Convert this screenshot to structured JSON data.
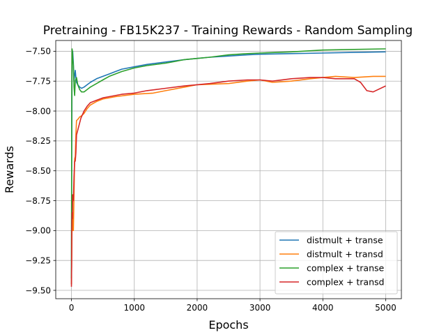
{
  "chart_data": {
    "type": "line",
    "title": "Pretraining - FB15K237 - Training Rewards - Random Sampling",
    "xlabel": "Epochs",
    "ylabel": "Rewards",
    "xlim": [
      -250,
      5250
    ],
    "ylim": [
      -9.57,
      -7.41
    ],
    "xticks": [
      0,
      1000,
      2000,
      3000,
      4000,
      5000
    ],
    "xtick_labels": [
      "0",
      "1000",
      "2000",
      "3000",
      "4000",
      "5000"
    ],
    "yticks": [
      -9.5,
      -9.25,
      -9.0,
      -8.75,
      -8.5,
      -8.25,
      -8.0,
      -7.75,
      -7.5
    ],
    "ytick_labels": [
      "−9.50",
      "−9.25",
      "−9.00",
      "−8.75",
      "−8.50",
      "−8.25",
      "−8.00",
      "−7.75",
      "−7.50"
    ],
    "grid": true,
    "legend_position": "lower-right",
    "series": [
      {
        "name": "distmult + transe",
        "color": "#1f77b4",
        "x": [
          0,
          5,
          10,
          20,
          30,
          40,
          50,
          60,
          70,
          80,
          100,
          130,
          160,
          200,
          250,
          300,
          400,
          500,
          600,
          700,
          800,
          1000,
          1200,
          1500,
          1800,
          2000,
          2200,
          2500,
          2800,
          3000,
          3500,
          4000,
          4500,
          5000
        ],
        "y": [
          -9.45,
          -8.2,
          -7.6,
          -7.5,
          -7.6,
          -7.75,
          -7.7,
          -7.66,
          -7.72,
          -7.76,
          -7.78,
          -7.8,
          -7.81,
          -7.8,
          -7.78,
          -7.76,
          -7.73,
          -7.71,
          -7.69,
          -7.67,
          -7.65,
          -7.63,
          -7.61,
          -7.59,
          -7.57,
          -7.56,
          -7.55,
          -7.54,
          -7.53,
          -7.525,
          -7.52,
          -7.515,
          -7.51,
          -7.505
        ]
      },
      {
        "name": "distmult + transd",
        "color": "#ff7f0e",
        "x": [
          0,
          5,
          10,
          15,
          20,
          30,
          40,
          50,
          60,
          70,
          80,
          100,
          130,
          160,
          200,
          250,
          300,
          400,
          500,
          700,
          1000,
          1300,
          1500,
          1800,
          2000,
          2500,
          2800,
          3000,
          3200,
          3500,
          3800,
          4000,
          4200,
          4500,
          4800,
          5000
        ],
        "y": [
          -9.45,
          -9.2,
          -8.9,
          -9.0,
          -8.85,
          -9.0,
          -8.7,
          -8.4,
          -8.38,
          -8.2,
          -8.08,
          -8.07,
          -8.05,
          -8.04,
          -8.02,
          -7.98,
          -7.95,
          -7.92,
          -7.9,
          -7.88,
          -7.86,
          -7.85,
          -7.83,
          -7.8,
          -7.78,
          -7.77,
          -7.75,
          -7.74,
          -7.76,
          -7.75,
          -7.73,
          -7.72,
          -7.71,
          -7.72,
          -7.71,
          -7.71
        ]
      },
      {
        "name": "complex + transe",
        "color": "#2ca02c",
        "x": [
          0,
          3,
          5,
          10,
          15,
          20,
          30,
          40,
          50,
          60,
          80,
          100,
          130,
          160,
          200,
          250,
          300,
          400,
          500,
          600,
          800,
          1000,
          1200,
          1500,
          1800,
          2000,
          2200,
          2500,
          2800,
          3000,
          3500,
          4000,
          4500,
          5000
        ],
        "y": [
          -9.4,
          -8.5,
          -7.9,
          -7.48,
          -7.5,
          -7.56,
          -7.62,
          -7.8,
          -7.87,
          -7.75,
          -7.72,
          -7.78,
          -7.82,
          -7.84,
          -7.84,
          -7.82,
          -7.8,
          -7.77,
          -7.74,
          -7.71,
          -7.67,
          -7.64,
          -7.62,
          -7.6,
          -7.57,
          -7.56,
          -7.55,
          -7.53,
          -7.52,
          -7.515,
          -7.505,
          -7.49,
          -7.485,
          -7.48
        ]
      },
      {
        "name": "complex + transd",
        "color": "#d62728",
        "x": [
          0,
          3,
          5,
          10,
          15,
          20,
          30,
          40,
          50,
          60,
          70,
          80,
          100,
          120,
          150,
          200,
          250,
          300,
          400,
          500,
          600,
          800,
          1000,
          1200,
          1500,
          1800,
          2000,
          2200,
          2500,
          2800,
          3000,
          3200,
          3500,
          3800,
          4000,
          4200,
          4500,
          4600,
          4700,
          4800,
          5000
        ],
        "y": [
          -9.47,
          -9.3,
          -9.0,
          -8.85,
          -8.9,
          -8.7,
          -8.75,
          -8.55,
          -8.42,
          -8.42,
          -8.35,
          -8.2,
          -8.16,
          -8.12,
          -8.06,
          -8.0,
          -7.96,
          -7.93,
          -7.91,
          -7.89,
          -7.88,
          -7.86,
          -7.85,
          -7.83,
          -7.81,
          -7.79,
          -7.78,
          -7.77,
          -7.75,
          -7.74,
          -7.74,
          -7.75,
          -7.73,
          -7.72,
          -7.72,
          -7.73,
          -7.73,
          -7.76,
          -7.83,
          -7.84,
          -7.79
        ]
      }
    ]
  }
}
